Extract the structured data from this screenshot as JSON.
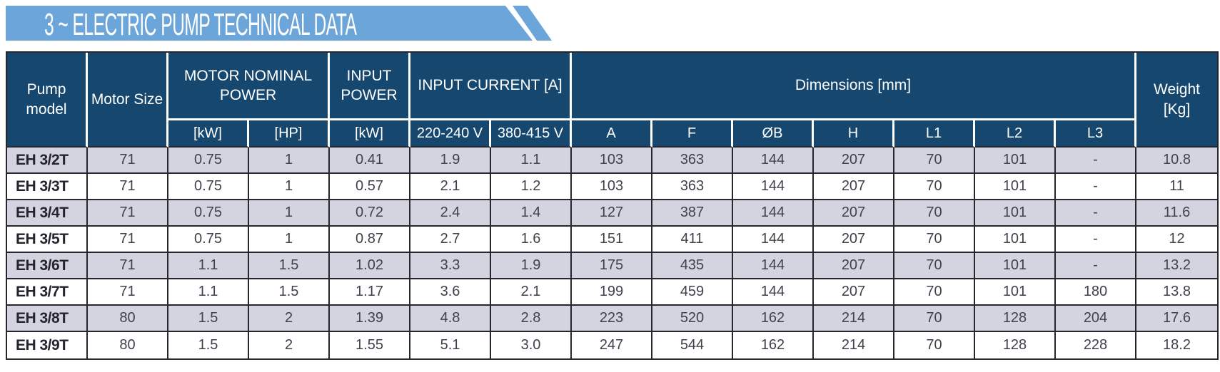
{
  "banner": {
    "title": "3 ~ ELECTRIC PUMP TECHNICAL DATA"
  },
  "colors": {
    "banner_blue": "#6ba5d9",
    "header_navy": "#16476e",
    "row_stripe": "#d4d4e0",
    "row_white": "#ffffff",
    "border_dark": "#26262f",
    "header_text": "#ffffff",
    "data_text": "#41414c",
    "model_text": "#25232e"
  },
  "table": {
    "header_row1": {
      "pump_model": "Pump model",
      "motor_size": "Motor Size",
      "motor_nominal_power": "MOTOR NOMINAL POWER",
      "input_power": "INPUT POWER",
      "input_current": "INPUT CURRENT [A]",
      "dimensions": "Dimensions [mm]",
      "weight": "Weight [Kg]"
    },
    "header_row2": {
      "kw_nominal": "[kW]",
      "hp_nominal": "[HP]",
      "kw_input": "[kW]",
      "v220": "220-240 V",
      "v380": "380-415 V",
      "dim_a": "A",
      "dim_f": "F",
      "dim_ob": "ØB",
      "dim_h": "H",
      "dim_l1": "L1",
      "dim_l2": "L2",
      "dim_l3": "L3"
    },
    "rows": [
      [
        "EH 3/2T",
        "71",
        "0.75",
        "1",
        "0.41",
        "1.9",
        "1.1",
        "103",
        "363",
        "144",
        "207",
        "70",
        "101",
        "-",
        "10.8"
      ],
      [
        "EH 3/3T",
        "71",
        "0.75",
        "1",
        "0.57",
        "2.1",
        "1.2",
        "103",
        "363",
        "144",
        "207",
        "70",
        "101",
        "-",
        "11"
      ],
      [
        "EH 3/4T",
        "71",
        "0.75",
        "1",
        "0.72",
        "2.4",
        "1.4",
        "127",
        "387",
        "144",
        "207",
        "70",
        "101",
        "-",
        "11.6"
      ],
      [
        "EH 3/5T",
        "71",
        "0.75",
        "1",
        "0.87",
        "2.7",
        "1.6",
        "151",
        "411",
        "144",
        "207",
        "70",
        "101",
        "-",
        "12"
      ],
      [
        "EH 3/6T",
        "71",
        "1.1",
        "1.5",
        "1.02",
        "3.3",
        "1.9",
        "175",
        "435",
        "144",
        "207",
        "70",
        "101",
        "-",
        "13.2"
      ],
      [
        "EH 3/7T",
        "71",
        "1.1",
        "1.5",
        "1.17",
        "3.6",
        "2.1",
        "199",
        "459",
        "144",
        "207",
        "70",
        "101",
        "180",
        "13.8"
      ],
      [
        "EH 3/8T",
        "80",
        "1.5",
        "2",
        "1.39",
        "4.8",
        "2.8",
        "223",
        "520",
        "162",
        "214",
        "70",
        "128",
        "204",
        "17.6"
      ],
      [
        "EH 3/9T",
        "80",
        "1.5",
        "2",
        "1.55",
        "5.1",
        "3.0",
        "247",
        "544",
        "162",
        "214",
        "70",
        "128",
        "228",
        "18.2"
      ]
    ]
  }
}
